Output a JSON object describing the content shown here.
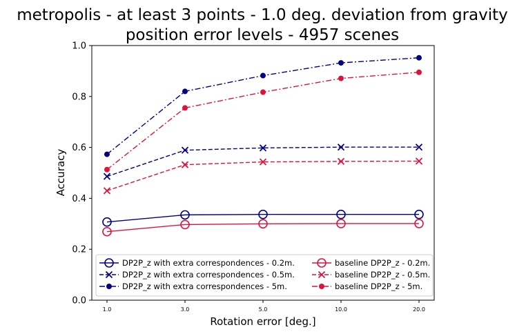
{
  "chart_data": {
    "type": "line",
    "title_lines": [
      "metropolis - at least 3 points - 1.0 deg. deviation from gravity",
      "position error levels - 4957 scenes"
    ],
    "xlabel": "Rotation error [deg.]",
    "ylabel": "Accuracy",
    "x": [
      "1.0",
      "3.0",
      "5.0",
      "10.0",
      "20.0"
    ],
    "ylim": [
      0.0,
      1.0
    ],
    "yticks": [
      "0.0",
      "0.2",
      "0.4",
      "0.6",
      "0.8",
      "1.0"
    ],
    "legend_placement": "lower-center",
    "grid": false,
    "series": [
      {
        "name": "DP2P_z with extra correspondences - 0.2m.",
        "color": "#000080",
        "linestyle": "solid",
        "marker": "circle-open",
        "values": [
          0.307,
          0.335,
          0.337,
          0.337,
          0.337
        ]
      },
      {
        "name": "DP2P_z with extra correspondences - 0.5m.",
        "color": "#000080",
        "linestyle": "dashed",
        "marker": "x",
        "values": [
          0.486,
          0.589,
          0.598,
          0.601,
          0.601
        ]
      },
      {
        "name": "DP2P_z with extra correspondences - 5m.",
        "color": "#000080",
        "linestyle": "dashdot",
        "marker": "dot",
        "values": [
          0.573,
          0.82,
          0.882,
          0.932,
          0.952
        ]
      },
      {
        "name": "baseline DP2P_z - 0.2m.",
        "color": "#dc143c",
        "linestyle": "solid",
        "marker": "circle-open",
        "values": [
          0.269,
          0.297,
          0.3,
          0.301,
          0.301
        ]
      },
      {
        "name": "baseline DP2P_z - 0.5m.",
        "color": "#dc143c",
        "linestyle": "dashed",
        "marker": "x",
        "values": [
          0.43,
          0.532,
          0.543,
          0.545,
          0.546
        ]
      },
      {
        "name": "baseline DP2P_z - 5m.",
        "color": "#dc143c",
        "linestyle": "dashdot",
        "marker": "dot",
        "values": [
          0.513,
          0.755,
          0.817,
          0.871,
          0.895
        ]
      }
    ]
  }
}
